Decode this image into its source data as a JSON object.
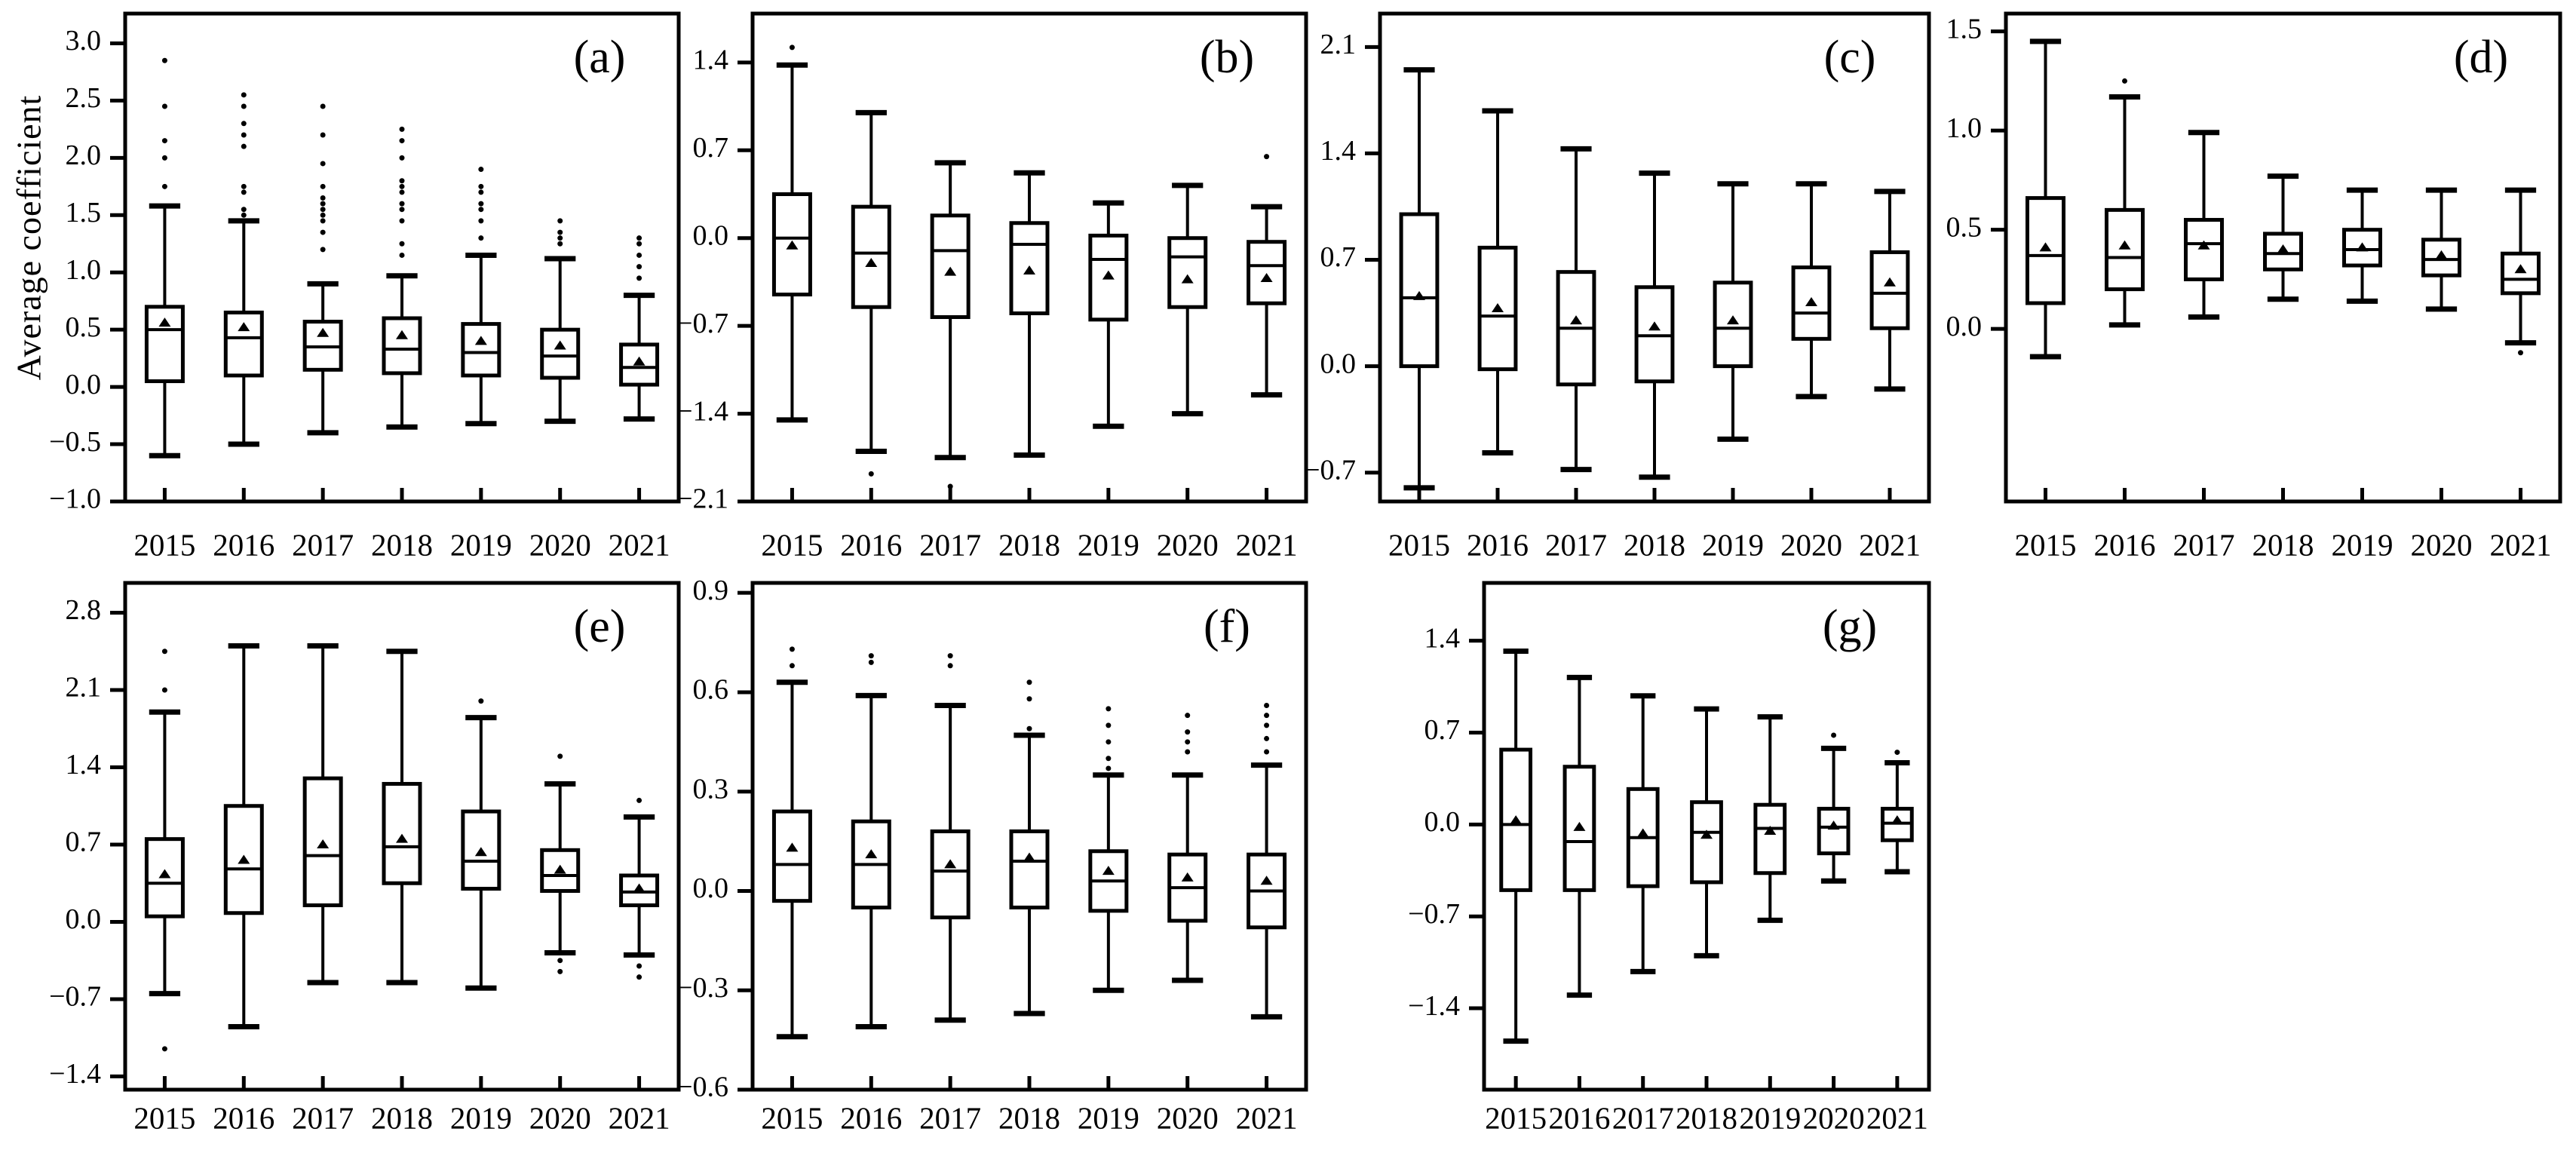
{
  "figure": {
    "y_axis_label": "Average coefficient",
    "background_color": "#ffffff",
    "ink_color": "#000000"
  },
  "chart_data": [
    {
      "id": "a",
      "type": "boxplot",
      "panel_label": "(a)",
      "categories": [
        "2015",
        "2016",
        "2017",
        "2018",
        "2019",
        "2020",
        "2021"
      ],
      "yticks": [
        3.0,
        2.5,
        2.0,
        1.5,
        1.0,
        0.5,
        0.0,
        -0.5,
        -1.0
      ],
      "ylim": [
        -1.0,
        3.26
      ],
      "grid": false,
      "boxes": [
        {
          "year": "2015",
          "whislo": -0.6,
          "q1": 0.05,
          "med": 0.5,
          "mean": 0.56,
          "q3": 0.7,
          "whishi": 1.58,
          "fliers": [
            1.75,
            2.0,
            2.15,
            2.45,
            2.85
          ]
        },
        {
          "year": "2016",
          "whislo": -0.5,
          "q1": 0.1,
          "med": 0.43,
          "mean": 0.52,
          "q3": 0.65,
          "whishi": 1.45,
          "fliers": [
            1.5,
            1.55,
            1.7,
            1.75,
            2.1,
            2.2,
            2.3,
            2.45,
            2.55
          ]
        },
        {
          "year": "2017",
          "whislo": -0.4,
          "q1": 0.15,
          "med": 0.35,
          "mean": 0.47,
          "q3": 0.57,
          "whishi": 0.9,
          "fliers": [
            1.2,
            1.35,
            1.45,
            1.5,
            1.55,
            1.6,
            1.65,
            1.75,
            1.95,
            2.2,
            2.45
          ]
        },
        {
          "year": "2018",
          "whislo": -0.35,
          "q1": 0.12,
          "med": 0.33,
          "mean": 0.45,
          "q3": 0.6,
          "whishi": 0.97,
          "fliers": [
            1.15,
            1.25,
            1.45,
            1.55,
            1.6,
            1.7,
            1.75,
            1.8,
            2.0,
            2.15,
            2.25
          ]
        },
        {
          "year": "2019",
          "whislo": -0.32,
          "q1": 0.1,
          "med": 0.3,
          "mean": 0.4,
          "q3": 0.55,
          "whishi": 1.15,
          "fliers": [
            1.3,
            1.45,
            1.55,
            1.6,
            1.7,
            1.75,
            1.9
          ]
        },
        {
          "year": "2020",
          "whislo": -0.3,
          "q1": 0.08,
          "med": 0.27,
          "mean": 0.36,
          "q3": 0.5,
          "whishi": 1.12,
          "fliers": [
            1.25,
            1.3,
            1.35,
            1.45
          ]
        },
        {
          "year": "2021",
          "whislo": -0.28,
          "q1": 0.02,
          "med": 0.17,
          "mean": 0.22,
          "q3": 0.37,
          "whishi": 0.8,
          "fliers": [
            0.95,
            1.05,
            1.15,
            1.25,
            1.3
          ]
        }
      ]
    },
    {
      "id": "b",
      "type": "boxplot",
      "panel_label": "(b)",
      "categories": [
        "2015",
        "2016",
        "2017",
        "2018",
        "2019",
        "2020",
        "2021"
      ],
      "yticks": [
        1.4,
        0.7,
        0.0,
        -0.7,
        -1.4,
        -2.1
      ],
      "ylim": [
        -2.1,
        1.79
      ],
      "grid": false,
      "boxes": [
        {
          "year": "2015",
          "whislo": -1.45,
          "q1": -0.45,
          "med": 0.0,
          "mean": -0.06,
          "q3": 0.35,
          "whishi": 1.38,
          "fliers": [
            1.52
          ]
        },
        {
          "year": "2016",
          "whislo": -1.7,
          "q1": -0.55,
          "med": -0.12,
          "mean": -0.2,
          "q3": 0.25,
          "whishi": 1.0,
          "fliers": [
            -1.88
          ]
        },
        {
          "year": "2017",
          "whislo": -1.75,
          "q1": -0.63,
          "med": -0.1,
          "mean": -0.27,
          "q3": 0.18,
          "whishi": 0.6,
          "fliers": [
            -1.98
          ]
        },
        {
          "year": "2018",
          "whislo": -1.73,
          "q1": -0.6,
          "med": -0.05,
          "mean": -0.26,
          "q3": 0.12,
          "whishi": 0.52,
          "fliers": []
        },
        {
          "year": "2019",
          "whislo": -1.5,
          "q1": -0.65,
          "med": -0.17,
          "mean": -0.3,
          "q3": 0.02,
          "whishi": 0.28,
          "fliers": []
        },
        {
          "year": "2020",
          "whislo": -1.4,
          "q1": -0.55,
          "med": -0.15,
          "mean": -0.33,
          "q3": 0.0,
          "whishi": 0.42,
          "fliers": []
        },
        {
          "year": "2021",
          "whislo": -1.25,
          "q1": -0.52,
          "med": -0.22,
          "mean": -0.32,
          "q3": -0.03,
          "whishi": 0.25,
          "fliers": [
            0.65
          ]
        }
      ]
    },
    {
      "id": "c",
      "type": "boxplot",
      "panel_label": "(c)",
      "categories": [
        "2015",
        "2016",
        "2017",
        "2018",
        "2019",
        "2020",
        "2021"
      ],
      "yticks": [
        2.1,
        1.4,
        0.7,
        0.0,
        -0.7
      ],
      "ylim": [
        -0.89,
        2.32
      ],
      "grid": false,
      "boxes": [
        {
          "year": "2015",
          "whislo": -0.8,
          "q1": 0.0,
          "med": 0.45,
          "mean": 0.46,
          "q3": 1.0,
          "whishi": 1.95,
          "fliers": []
        },
        {
          "year": "2016",
          "whislo": -0.57,
          "q1": -0.02,
          "med": 0.33,
          "mean": 0.38,
          "q3": 0.78,
          "whishi": 1.68,
          "fliers": []
        },
        {
          "year": "2017",
          "whislo": -0.68,
          "q1": -0.12,
          "med": 0.25,
          "mean": 0.3,
          "q3": 0.62,
          "whishi": 1.43,
          "fliers": []
        },
        {
          "year": "2018",
          "whislo": -0.73,
          "q1": -0.1,
          "med": 0.2,
          "mean": 0.26,
          "q3": 0.52,
          "whishi": 1.27,
          "fliers": []
        },
        {
          "year": "2019",
          "whislo": -0.48,
          "q1": 0.0,
          "med": 0.25,
          "mean": 0.3,
          "q3": 0.55,
          "whishi": 1.2,
          "fliers": []
        },
        {
          "year": "2020",
          "whislo": -0.2,
          "q1": 0.18,
          "med": 0.35,
          "mean": 0.42,
          "q3": 0.65,
          "whishi": 1.2,
          "fliers": []
        },
        {
          "year": "2021",
          "whislo": -0.15,
          "q1": 0.25,
          "med": 0.48,
          "mean": 0.55,
          "q3": 0.75,
          "whishi": 1.15,
          "fliers": []
        }
      ]
    },
    {
      "id": "d",
      "type": "boxplot",
      "panel_label": "(d)",
      "categories": [
        "2015",
        "2016",
        "2017",
        "2018",
        "2019",
        "2020",
        "2021"
      ],
      "yticks": [
        1.5,
        1.0,
        0.5,
        0.0
      ],
      "ylim": [
        -0.87,
        1.59
      ],
      "grid": false,
      "boxes": [
        {
          "year": "2015",
          "whislo": -0.14,
          "q1": 0.13,
          "med": 0.37,
          "mean": 0.41,
          "q3": 0.66,
          "whishi": 1.45,
          "fliers": []
        },
        {
          "year": "2016",
          "whislo": 0.02,
          "q1": 0.2,
          "med": 0.36,
          "mean": 0.42,
          "q3": 0.6,
          "whishi": 1.17,
          "fliers": [
            1.25
          ]
        },
        {
          "year": "2017",
          "whislo": 0.06,
          "q1": 0.25,
          "med": 0.43,
          "mean": 0.42,
          "q3": 0.55,
          "whishi": 0.99,
          "fliers": []
        },
        {
          "year": "2018",
          "whislo": 0.15,
          "q1": 0.3,
          "med": 0.38,
          "mean": 0.4,
          "q3": 0.48,
          "whishi": 0.77,
          "fliers": []
        },
        {
          "year": "2019",
          "whislo": 0.14,
          "q1": 0.32,
          "med": 0.4,
          "mean": 0.41,
          "q3": 0.5,
          "whishi": 0.7,
          "fliers": []
        },
        {
          "year": "2020",
          "whislo": 0.1,
          "q1": 0.27,
          "med": 0.35,
          "mean": 0.37,
          "q3": 0.45,
          "whishi": 0.7,
          "fliers": []
        },
        {
          "year": "2021",
          "whislo": -0.07,
          "q1": 0.18,
          "med": 0.25,
          "mean": 0.3,
          "q3": 0.38,
          "whishi": 0.7,
          "fliers": [
            -0.12
          ]
        }
      ]
    },
    {
      "id": "e",
      "type": "boxplot",
      "panel_label": "(e)",
      "categories": [
        "2015",
        "2016",
        "2017",
        "2018",
        "2019",
        "2020",
        "2021"
      ],
      "yticks": [
        2.8,
        2.1,
        1.4,
        0.7,
        0.0,
        -0.7,
        -1.4
      ],
      "ylim": [
        -1.52,
        3.07
      ],
      "grid": false,
      "boxes": [
        {
          "year": "2015",
          "whislo": -0.65,
          "q1": 0.05,
          "med": 0.35,
          "mean": 0.43,
          "q3": 0.75,
          "whishi": 1.9,
          "fliers": [
            2.45,
            2.1,
            -1.15
          ]
        },
        {
          "year": "2016",
          "whislo": -0.95,
          "q1": 0.08,
          "med": 0.48,
          "mean": 0.56,
          "q3": 1.05,
          "whishi": 2.5,
          "fliers": []
        },
        {
          "year": "2017",
          "whislo": -0.55,
          "q1": 0.15,
          "med": 0.6,
          "mean": 0.7,
          "q3": 1.3,
          "whishi": 2.5,
          "fliers": []
        },
        {
          "year": "2018",
          "whislo": -0.55,
          "q1": 0.35,
          "med": 0.68,
          "mean": 0.75,
          "q3": 1.25,
          "whishi": 2.45,
          "fliers": []
        },
        {
          "year": "2019",
          "whislo": -0.6,
          "q1": 0.3,
          "med": 0.55,
          "mean": 0.63,
          "q3": 1.0,
          "whishi": 1.85,
          "fliers": [
            2.0
          ]
        },
        {
          "year": "2020",
          "whislo": -0.28,
          "q1": 0.28,
          "med": 0.42,
          "mean": 0.47,
          "q3": 0.65,
          "whishi": 1.25,
          "fliers": [
            1.5,
            -0.35,
            -0.45
          ]
        },
        {
          "year": "2021",
          "whislo": -0.3,
          "q1": 0.15,
          "med": 0.27,
          "mean": 0.3,
          "q3": 0.42,
          "whishi": 0.95,
          "fliers": [
            1.1,
            -0.4,
            -0.5
          ]
        }
      ]
    },
    {
      "id": "f",
      "type": "boxplot",
      "panel_label": "(f)",
      "categories": [
        "2015",
        "2016",
        "2017",
        "2018",
        "2019",
        "2020",
        "2021"
      ],
      "yticks": [
        0.9,
        0.6,
        0.3,
        0.0,
        -0.3,
        -0.6
      ],
      "ylim": [
        -0.6,
        0.93
      ],
      "grid": false,
      "boxes": [
        {
          "year": "2015",
          "whislo": -0.44,
          "q1": -0.03,
          "med": 0.08,
          "mean": 0.13,
          "q3": 0.24,
          "whishi": 0.63,
          "fliers": [
            0.73,
            0.68
          ]
        },
        {
          "year": "2016",
          "whislo": -0.41,
          "q1": -0.05,
          "med": 0.08,
          "mean": 0.11,
          "q3": 0.21,
          "whishi": 0.59,
          "fliers": [
            0.71,
            0.69
          ]
        },
        {
          "year": "2017",
          "whislo": -0.39,
          "q1": -0.08,
          "med": 0.06,
          "mean": 0.08,
          "q3": 0.18,
          "whishi": 0.56,
          "fliers": [
            0.71,
            0.68
          ]
        },
        {
          "year": "2018",
          "whislo": -0.37,
          "q1": -0.05,
          "med": 0.09,
          "mean": 0.1,
          "q3": 0.18,
          "whishi": 0.47,
          "fliers": [
            0.63,
            0.58,
            0.49
          ]
        },
        {
          "year": "2019",
          "whislo": -0.3,
          "q1": -0.06,
          "med": 0.03,
          "mean": 0.06,
          "q3": 0.12,
          "whishi": 0.35,
          "fliers": [
            0.55,
            0.5,
            0.45,
            0.4,
            0.37
          ]
        },
        {
          "year": "2020",
          "whislo": -0.27,
          "q1": -0.09,
          "med": 0.01,
          "mean": 0.04,
          "q3": 0.11,
          "whishi": 0.35,
          "fliers": [
            0.53,
            0.48,
            0.45,
            0.42
          ]
        },
        {
          "year": "2021",
          "whislo": -0.38,
          "q1": -0.11,
          "med": 0.0,
          "mean": 0.03,
          "q3": 0.11,
          "whishi": 0.38,
          "fliers": [
            0.56,
            0.53,
            0.5,
            0.46,
            0.42
          ]
        }
      ]
    },
    {
      "id": "g",
      "type": "boxplot",
      "panel_label": "(g)",
      "categories": [
        "2015",
        "2016",
        "2017",
        "2018",
        "2019",
        "2020",
        "2021"
      ],
      "yticks": [
        1.4,
        0.7,
        0.0,
        -0.7,
        -1.4
      ],
      "ylim": [
        -2.02,
        1.84
      ],
      "grid": false,
      "boxes": [
        {
          "year": "2015",
          "whislo": -1.65,
          "q1": -0.5,
          "med": 0.0,
          "mean": 0.03,
          "q3": 0.57,
          "whishi": 1.32,
          "fliers": []
        },
        {
          "year": "2016",
          "whislo": -1.3,
          "q1": -0.5,
          "med": -0.13,
          "mean": -0.02,
          "q3": 0.44,
          "whishi": 1.12,
          "fliers": []
        },
        {
          "year": "2017",
          "whislo": -1.12,
          "q1": -0.47,
          "med": -0.1,
          "mean": -0.07,
          "q3": 0.27,
          "whishi": 0.98,
          "fliers": []
        },
        {
          "year": "2018",
          "whislo": -1.0,
          "q1": -0.44,
          "med": -0.06,
          "mean": -0.08,
          "q3": 0.17,
          "whishi": 0.88,
          "fliers": []
        },
        {
          "year": "2019",
          "whislo": -0.73,
          "q1": -0.37,
          "med": -0.03,
          "mean": -0.05,
          "q3": 0.15,
          "whishi": 0.82,
          "fliers": []
        },
        {
          "year": "2020",
          "whislo": -0.43,
          "q1": -0.22,
          "med": -0.02,
          "mean": -0.01,
          "q3": 0.12,
          "whishi": 0.58,
          "fliers": [
            0.68
          ]
        },
        {
          "year": "2021",
          "whislo": -0.36,
          "q1": -0.12,
          "med": 0.01,
          "mean": 0.03,
          "q3": 0.12,
          "whishi": 0.47,
          "fliers": [
            0.55
          ]
        }
      ]
    }
  ]
}
